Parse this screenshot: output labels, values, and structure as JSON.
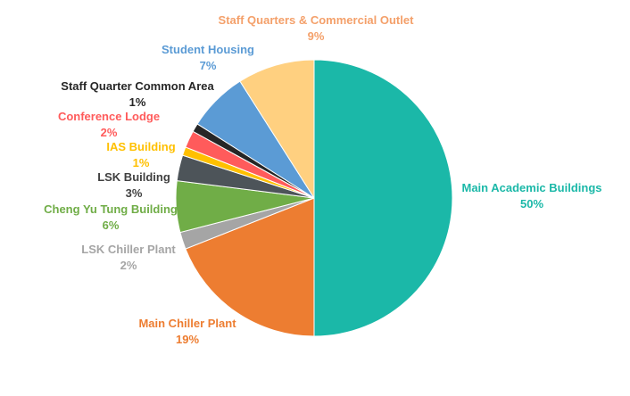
{
  "chart_data": {
    "type": "pie",
    "title": "",
    "legend": "none",
    "start_angle_deg": 0,
    "direction": "clockwise",
    "slices": [
      {
        "label": "Main Academic Buildings",
        "value": 50,
        "value_label": "50%",
        "color": "#1bb8a8",
        "label_color": "#1bb8a8"
      },
      {
        "label": "Main Chiller Plant",
        "value": 19,
        "value_label": "19%",
        "color": "#ed7d31",
        "label_color": "#ed7d31"
      },
      {
        "label": "LSK Chiller Plant",
        "value": 2,
        "value_label": "2%",
        "color": "#a5a5a5",
        "label_color": "#a5a5a5"
      },
      {
        "label": "Cheng Yu Tung Building",
        "value": 6,
        "value_label": "6%",
        "color": "#70ad47",
        "label_color": "#70ad47"
      },
      {
        "label": "LSK Building",
        "value": 3,
        "value_label": "3%",
        "color": "#4d5459",
        "label_color": "#404040"
      },
      {
        "label": "IAS Building",
        "value": 1,
        "value_label": "1%",
        "color": "#ffc000",
        "label_color": "#ffc000"
      },
      {
        "label": "Conference Lodge",
        "value": 2,
        "value_label": "2%",
        "color": "#ff5b5b",
        "label_color": "#ff5b5b"
      },
      {
        "label": "Staff Quarter Common Area",
        "value": 1,
        "value_label": "1%",
        "color": "#262626",
        "label_color": "#262626"
      },
      {
        "label": "Student Housing",
        "value": 7,
        "value_label": "7%",
        "color": "#5b9bd5",
        "label_color": "#5b9bd5"
      },
      {
        "label": "Staff Quarters & Commercial Outlet",
        "value": 9,
        "value_label": "9%",
        "color": "#ffd080",
        "label_color": "#f4a06a"
      }
    ]
  }
}
